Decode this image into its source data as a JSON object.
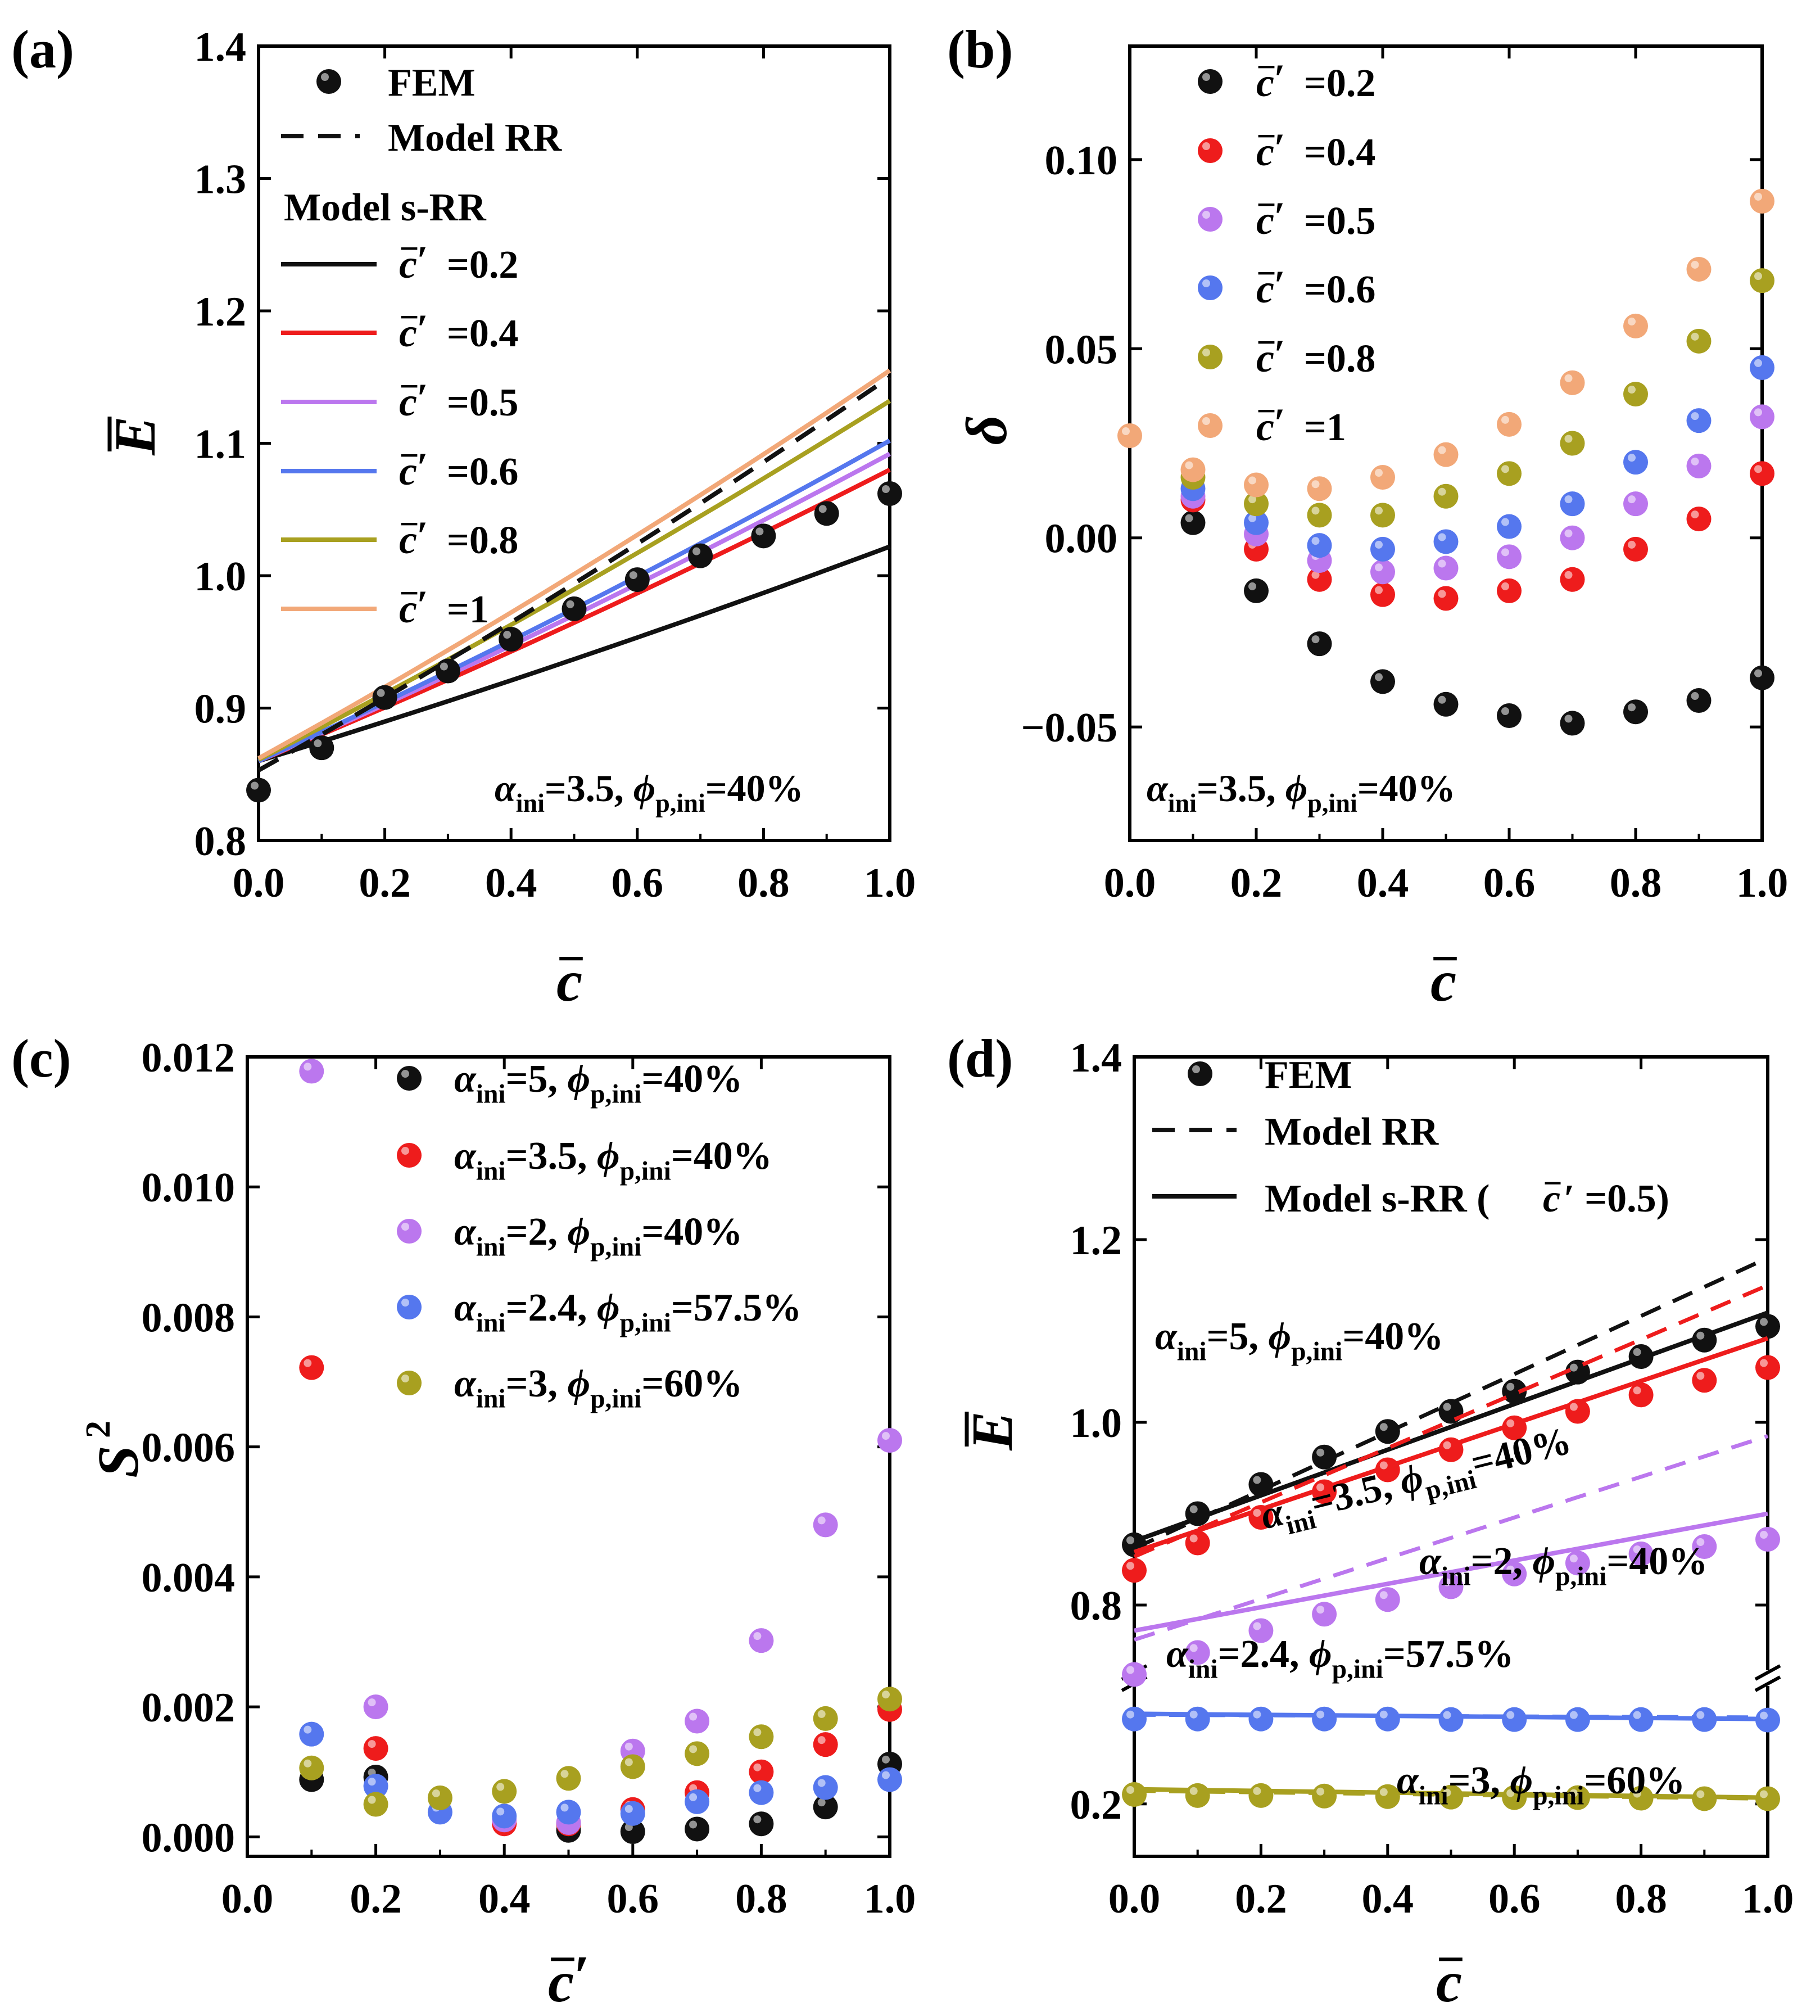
{
  "colors": {
    "black": "#111111",
    "red": "#ee1c1c",
    "violet": "#bb77ee",
    "blue": "#5577ee",
    "olive": "#a8a020",
    "peach": "#f2a878"
  },
  "chart_data": [
    {
      "panel": "(a)",
      "type": "line",
      "title": "",
      "xlabel": "c̄",
      "ylabel": "Ē",
      "xlim": [
        0,
        1
      ],
      "ylim": [
        0.8,
        1.4
      ],
      "xticks": [
        "0.0",
        "0.2",
        "0.4",
        "0.6",
        "0.8",
        "1.0"
      ],
      "yticks": [
        "0.8",
        "0.9",
        "1.0",
        "1.1",
        "1.2",
        "1.3",
        "1.4"
      ],
      "annotation": "αini=3.5, ϕp,ini=40%",
      "legend": [
        {
          "label": "FEM",
          "kind": "marker",
          "color": "#111111"
        },
        {
          "label": "Model RR",
          "kind": "dashed",
          "color": "#111111"
        },
        {
          "label": "Model s-RR",
          "kind": "header"
        },
        {
          "label": "c̄′ =0.2",
          "kind": "line",
          "color": "#111111"
        },
        {
          "label": "c̄′ =0.4",
          "kind": "line",
          "color": "#ee1c1c"
        },
        {
          "label": "c̄′ =0.5",
          "kind": "line",
          "color": "#bb77ee"
        },
        {
          "label": "c̄′ =0.6",
          "kind": "line",
          "color": "#5577ee"
        },
        {
          "label": "c̄′ =0.8",
          "kind": "line",
          "color": "#a8a020"
        },
        {
          "label": "c̄′ =1",
          "kind": "line",
          "color": "#f2a878"
        }
      ],
      "x": [
        0,
        0.1,
        0.2,
        0.3,
        0.4,
        0.5,
        0.6,
        0.7,
        0.8,
        0.9,
        1.0
      ],
      "fem": [
        0.838,
        0.87,
        0.908,
        0.928,
        0.952,
        0.975,
        0.997,
        1.015,
        1.03,
        1.047,
        1.062
      ],
      "model_rr": {
        "start": 0.853,
        "end": 1.15
      },
      "series": [
        {
          "name": "c̄′ =0.2",
          "color": "#111111",
          "start": 0.86,
          "end": 1.022
        },
        {
          "name": "c̄′ =0.4",
          "color": "#ee1c1c",
          "start": 0.86,
          "end": 1.08
        },
        {
          "name": "c̄′ =0.5",
          "color": "#bb77ee",
          "start": 0.86,
          "end": 1.092
        },
        {
          "name": "c̄′ =0.6",
          "color": "#5577ee",
          "start": 0.86,
          "end": 1.102
        },
        {
          "name": "c̄′ =0.8",
          "color": "#a8a020",
          "start": 0.861,
          "end": 1.132
        },
        {
          "name": "c̄′ =1",
          "color": "#f2a878",
          "start": 0.862,
          "end": 1.155
        }
      ]
    },
    {
      "panel": "(b)",
      "type": "scatter",
      "xlabel": "c̄",
      "ylabel": "δ",
      "xlim": [
        0,
        1
      ],
      "ylim": [
        -0.08,
        0.13
      ],
      "xticks": [
        "0.0",
        "0.2",
        "0.4",
        "0.6",
        "0.8",
        "1.0"
      ],
      "yticks": [
        "−0.05",
        "0.00",
        "0.05",
        "0.10"
      ],
      "annotation": "αini=3.5, ϕp,ini=40%",
      "x": [
        0,
        0.1,
        0.2,
        0.3,
        0.4,
        0.5,
        0.6,
        0.7,
        0.8,
        0.9,
        1.0
      ],
      "series": [
        {
          "name": "c̄′=0.2",
          "color": "#111111",
          "values": [
            null,
            0.004,
            -0.014,
            -0.028,
            -0.038,
            -0.044,
            -0.047,
            -0.049,
            -0.046,
            -0.043,
            -0.037
          ]
        },
        {
          "name": "c̄′=0.4",
          "color": "#ee1c1c",
          "values": [
            null,
            0.01,
            -0.003,
            -0.011,
            -0.015,
            -0.016,
            -0.014,
            -0.011,
            -0.003,
            0.005,
            0.017
          ]
        },
        {
          "name": "c̄′=0.5",
          "color": "#bb77ee",
          "values": [
            null,
            0.011,
            0.001,
            -0.006,
            -0.009,
            -0.008,
            -0.005,
            0.0,
            0.009,
            0.019,
            0.032
          ]
        },
        {
          "name": "c̄′=0.6",
          "color": "#5577ee",
          "values": [
            null,
            0.013,
            0.004,
            -0.002,
            -0.003,
            -0.001,
            0.003,
            0.009,
            0.02,
            0.031,
            0.045
          ]
        },
        {
          "name": "c̄′=0.8",
          "color": "#a8a020",
          "values": [
            null,
            0.016,
            0.009,
            0.006,
            0.006,
            0.011,
            0.017,
            0.025,
            0.038,
            0.052,
            0.068
          ]
        },
        {
          "name": "c̄′=1",
          "color": "#f2a878",
          "values": [
            0.027,
            0.018,
            0.014,
            0.013,
            0.016,
            0.022,
            0.03,
            0.041,
            0.056,
            0.071,
            0.089
          ]
        }
      ]
    },
    {
      "panel": "(c)",
      "type": "scatter",
      "xlabel": "c̄′",
      "ylabel": "S²",
      "xlim": [
        0,
        1
      ],
      "ylim": [
        -0.0003,
        0.012
      ],
      "xticks": [
        "0.0",
        "0.2",
        "0.4",
        "0.6",
        "0.8",
        "1.0"
      ],
      "yticks": [
        "0.000",
        "0.002",
        "0.004",
        "0.006",
        "0.008",
        "0.010",
        "0.012"
      ],
      "x": [
        0.1,
        0.2,
        0.3,
        0.4,
        0.5,
        0.6,
        0.7,
        0.8,
        0.9,
        1.0
      ],
      "series": [
        {
          "name": "αini=5, ϕp,ini=40%",
          "color": "#111111",
          "values": [
            0.00088,
            0.00092,
            null,
            null,
            0.0001,
            8e-05,
            0.00012,
            0.0002,
            0.00046,
            0.00112
          ]
        },
        {
          "name": "αini=3.5, ϕp,ini=40%",
          "color": "#ee1c1c",
          "values": [
            0.00722,
            0.00136,
            null,
            0.0002,
            0.0002,
            0.00042,
            0.00068,
            0.001,
            0.00142,
            0.00196
          ]
        },
        {
          "name": "αini=2, ϕp,ini=40%",
          "color": "#bb77ee",
          "values": [
            0.01178,
            0.002,
            null,
            0.00026,
            0.00022,
            0.00132,
            0.00178,
            0.00302,
            0.0048,
            0.0061
          ]
        },
        {
          "name": "αini=2.4, ϕp,ini=57.5%",
          "color": "#5577ee",
          "values": [
            0.00158,
            0.00078,
            0.00038,
            0.00032,
            0.00038,
            0.00036,
            0.00054,
            0.00068,
            0.00076,
            0.00088
          ]
        },
        {
          "name": "αini=3, ϕp,ini=60%",
          "color": "#a8a020",
          "values": [
            0.00106,
            0.0005,
            0.0006,
            0.0007,
            0.0009,
            0.00108,
            0.00128,
            0.00154,
            0.00182,
            0.00212
          ]
        }
      ]
    },
    {
      "panel": "(d)",
      "type": "line",
      "xlabel": "c̄",
      "ylabel": "Ē",
      "xlim": [
        0,
        1
      ],
      "yticks": [
        "0.2",
        "0.8",
        "1.0",
        "1.2",
        "1.4"
      ],
      "axis_break": "between 0.2 region and 0.8 region",
      "legend": [
        {
          "label": "FEM",
          "kind": "marker",
          "color": "#111111"
        },
        {
          "label": "Model RR",
          "kind": "dashed",
          "color": "#111111"
        },
        {
          "label": "Model s-RR (c̄′ =0.5)",
          "kind": "line",
          "color": "#111111"
        }
      ],
      "x": [
        0,
        0.1,
        0.2,
        0.3,
        0.4,
        0.5,
        0.6,
        0.7,
        0.8,
        0.9,
        1.0
      ],
      "series": [
        {
          "name": "αini=5, ϕp,ini=40%",
          "color": "#111111",
          "fem": [
            0.866,
            0.9,
            0.932,
            0.962,
            0.99,
            1.012,
            1.034,
            1.055,
            1.072,
            1.09,
            1.105
          ],
          "rr": [
            0.862,
            1.18
          ],
          "srr": [
            0.87,
            1.12
          ]
        },
        {
          "name": "αini=3.5, ϕp,ini=40%",
          "color": "#ee1c1c",
          "fem": [
            0.838,
            0.868,
            0.896,
            0.924,
            0.948,
            0.97,
            0.994,
            1.012,
            1.03,
            1.046,
            1.06
          ],
          "rr": [
            0.853,
            1.15
          ],
          "srr": [
            0.858,
            1.092
          ]
        },
        {
          "name": "αini=2, ϕp,ini=40%",
          "color": "#bb77ee",
          "fem": [
            0.724,
            0.748,
            0.772,
            0.79,
            0.806,
            0.82,
            0.834,
            0.846,
            0.856,
            0.864,
            0.872
          ],
          "rr": [
            0.762,
            0.985
          ],
          "srr": [
            0.772,
            0.9
          ]
        },
        {
          "name": "αini=2.4, ϕp,ini=57.5%",
          "color": "#5577ee",
          "fem": [
            0.362,
            0.362,
            0.362,
            0.362,
            0.362,
            0.361,
            0.361,
            0.361,
            0.361,
            0.361,
            0.36
          ],
          "rr": [
            0.37,
            0.365
          ],
          "srr": [
            0.372,
            0.362
          ]
        },
        {
          "name": "αini=3, ϕp,ini=60%",
          "color": "#a8a020",
          "fem": [
            0.218,
            0.216,
            0.216,
            0.215,
            0.214,
            0.213,
            0.212,
            0.212,
            0.211,
            0.21,
            0.21
          ],
          "rr": [
            0.225,
            0.21
          ],
          "srr": [
            0.228,
            0.212
          ]
        }
      ]
    }
  ],
  "panel_a": {
    "label": "(a)",
    "fem": "FEM",
    "rr": "Model RR",
    "srr": "Model s-RR",
    "ann_a": "α",
    "ann_a_sub": "ini",
    "ann_a_val": "=3.5, ",
    "ann_p": "ϕ",
    "ann_p_sub": "p,ini",
    "ann_p_val": "=40%",
    "xlab": "c",
    "ylab": "E"
  },
  "panel_b": {
    "label": "(b)",
    "xlab": "c",
    "ylab": "δ"
  },
  "panel_c": {
    "label": "(c)",
    "xlab": "c",
    "ylab": "S",
    "ylab_sup": "2"
  },
  "panel_d": {
    "label": "(d)",
    "fem": "FEM",
    "rr": "Model RR",
    "srr": "Model s-RR (",
    "srr_c": "c",
    "srr_tail": "′ =0.5)",
    "xlab": "c",
    "ylab": "E"
  }
}
